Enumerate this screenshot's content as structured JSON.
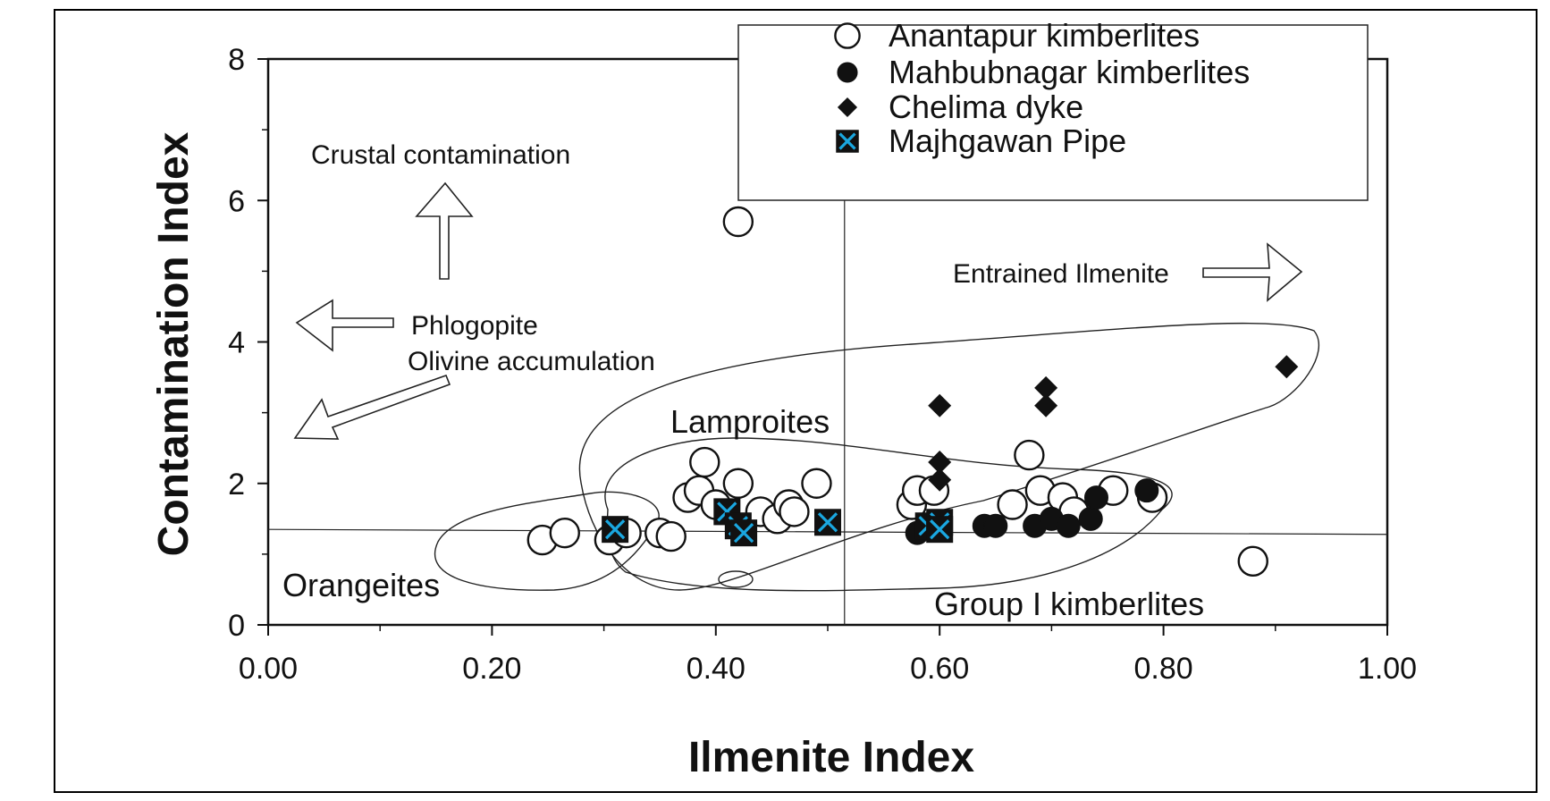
{
  "chart_data": {
    "type": "scatter",
    "xlabel": "Ilmenite Index",
    "ylabel": "Contamination Index",
    "xlim": [
      0,
      1
    ],
    "ylim": [
      0,
      8
    ],
    "x_ticks": [
      "0.00",
      "0.20",
      "0.40",
      "0.60",
      "0.80",
      "1.00"
    ],
    "y_ticks": [
      "0",
      "2",
      "4",
      "6",
      "8"
    ],
    "grid": false,
    "legend_position": "top-right",
    "reference_lines": {
      "vertical_x": 0.515,
      "horizontal_y_left": 1.35,
      "horizontal_y_right": 1.28
    },
    "series": [
      {
        "name": "Anantapur kimberlites",
        "marker": "open-circle",
        "points": [
          {
            "x": 0.245,
            "y": 1.2
          },
          {
            "x": 0.265,
            "y": 1.3
          },
          {
            "x": 0.305,
            "y": 1.2
          },
          {
            "x": 0.32,
            "y": 1.3
          },
          {
            "x": 0.35,
            "y": 1.3
          },
          {
            "x": 0.36,
            "y": 1.25
          },
          {
            "x": 0.375,
            "y": 1.8
          },
          {
            "x": 0.385,
            "y": 1.9
          },
          {
            "x": 0.39,
            "y": 2.3
          },
          {
            "x": 0.4,
            "y": 1.7
          },
          {
            "x": 0.42,
            "y": 2.0
          },
          {
            "x": 0.42,
            "y": 5.7
          },
          {
            "x": 0.44,
            "y": 1.6
          },
          {
            "x": 0.455,
            "y": 1.5
          },
          {
            "x": 0.465,
            "y": 1.7
          },
          {
            "x": 0.47,
            "y": 1.6
          },
          {
            "x": 0.49,
            "y": 2.0
          },
          {
            "x": 0.575,
            "y": 1.7
          },
          {
            "x": 0.58,
            "y": 1.9
          },
          {
            "x": 0.595,
            "y": 1.9
          },
          {
            "x": 0.665,
            "y": 1.7
          },
          {
            "x": 0.68,
            "y": 2.4
          },
          {
            "x": 0.69,
            "y": 1.9
          },
          {
            "x": 0.71,
            "y": 1.8
          },
          {
            "x": 0.72,
            "y": 1.6
          },
          {
            "x": 0.755,
            "y": 1.9
          },
          {
            "x": 0.79,
            "y": 1.8
          },
          {
            "x": 0.88,
            "y": 0.9
          }
        ]
      },
      {
        "name": "Mahbubnagar kimberlites",
        "marker": "filled-circle",
        "points": [
          {
            "x": 0.58,
            "y": 1.3
          },
          {
            "x": 0.64,
            "y": 1.4
          },
          {
            "x": 0.65,
            "y": 1.4
          },
          {
            "x": 0.685,
            "y": 1.4
          },
          {
            "x": 0.7,
            "y": 1.5
          },
          {
            "x": 0.715,
            "y": 1.4
          },
          {
            "x": 0.735,
            "y": 1.5
          },
          {
            "x": 0.74,
            "y": 1.8
          },
          {
            "x": 0.785,
            "y": 1.9
          }
        ]
      },
      {
        "name": "Chelima dyke",
        "marker": "filled-diamond",
        "points": [
          {
            "x": 0.6,
            "y": 3.1
          },
          {
            "x": 0.6,
            "y": 2.3
          },
          {
            "x": 0.6,
            "y": 2.05
          },
          {
            "x": 0.695,
            "y": 3.35
          },
          {
            "x": 0.695,
            "y": 3.1
          },
          {
            "x": 0.91,
            "y": 3.65
          }
        ]
      },
      {
        "name": "Majhgawan Pipe",
        "marker": "square-cross",
        "points": [
          {
            "x": 0.31,
            "y": 1.35
          },
          {
            "x": 0.41,
            "y": 1.6
          },
          {
            "x": 0.42,
            "y": 1.4
          },
          {
            "x": 0.425,
            "y": 1.3
          },
          {
            "x": 0.5,
            "y": 1.45
          },
          {
            "x": 0.59,
            "y": 1.4
          },
          {
            "x": 0.6,
            "y": 1.45
          },
          {
            "x": 0.6,
            "y": 1.35
          }
        ]
      }
    ],
    "annotations": {
      "crustal": "Crustal contamination",
      "phlogopite": "Phlogopite",
      "olivine": "Olivine accumulation",
      "entrained": "Entrained Ilmenite",
      "lamproites": "Lamproites",
      "orangeites": "Orangeites",
      "group1": "Group I kimberlites"
    },
    "colors": {
      "cross": "#1aa7e0",
      "ink": "#111111"
    }
  }
}
